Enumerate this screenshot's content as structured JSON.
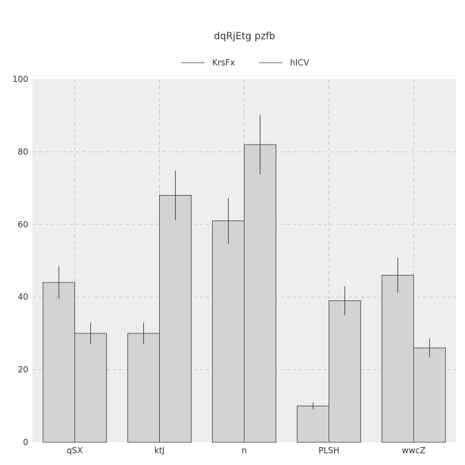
{
  "chart_data": {
    "type": "bar",
    "title": "dqRjEtg pzfb",
    "xlabel": "",
    "ylabel": "",
    "categories": [
      "qSX",
      "ktJ",
      "n",
      "PLSH",
      "wwcZ"
    ],
    "series": [
      {
        "name": "KrsFx",
        "values": [
          44,
          30,
          61,
          10,
          46
        ],
        "errors": [
          4.5,
          3,
          6.3,
          1,
          4.8
        ]
      },
      {
        "name": "hICV",
        "values": [
          30,
          68,
          82,
          39,
          26
        ],
        "errors": [
          3,
          6.8,
          8.2,
          4,
          2.6
        ]
      }
    ],
    "ylim": [
      0,
      100
    ],
    "yticks": [
      0,
      20,
      40,
      60,
      80,
      100
    ],
    "grid": true,
    "legend_position": "top-center",
    "colors": {
      "bar_fill": "#d3d3d3",
      "bar_stroke": "#555555",
      "plot_background": "#eeeeee",
      "grid": "#c8c8c8",
      "error_bar": "#444444",
      "legend_line": "#555555"
    }
  }
}
